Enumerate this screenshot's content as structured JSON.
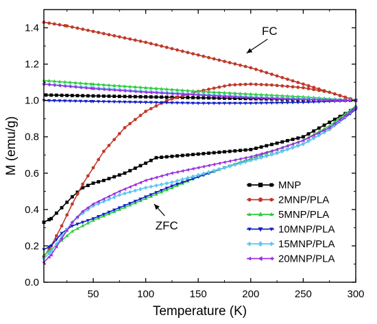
{
  "chart_data": {
    "type": "line",
    "xlabel": "Temperature (K)",
    "ylabel": "M (emu/g)",
    "xlim": [
      3,
      300
    ],
    "ylim": [
      0.0,
      1.5
    ],
    "x_ticks": [
      50,
      100,
      150,
      200,
      250,
      300
    ],
    "y_ticks": [
      0.0,
      0.2,
      0.4,
      0.6,
      0.8,
      1.0,
      1.2,
      1.4
    ],
    "x_tick_labels": [
      "50",
      "100",
      "150",
      "200",
      "250",
      "300"
    ],
    "y_tick_labels": [
      "0.0",
      "0.2",
      "0.4",
      "0.6",
      "0.8",
      "1.0",
      "1.2",
      "1.4"
    ],
    "grid": false,
    "legend_placement": "bottom-right",
    "annotations": [
      {
        "text": "FC",
        "x": 218,
        "y": 1.36,
        "arrow_to": [
          196,
          1.26
        ]
      },
      {
        "text": "ZFC",
        "x": 120,
        "y": 0.29,
        "arrow_to": [
          108,
          0.43
        ]
      }
    ],
    "series": [
      {
        "name": "MNP",
        "color": "#000000",
        "marker": "square",
        "branches": [
          {
            "x": [
              5,
              50,
              100,
              150,
              200,
              250,
              300
            ],
            "y": [
              1.03,
              1.025,
              1.02,
              1.015,
              1.01,
              1.005,
              1.0
            ]
          },
          {
            "x": [
              3,
              10,
              20,
              30,
              40,
              50,
              60,
              80,
              100,
              110,
              120,
              150,
              200,
              250,
              300
            ],
            "y": [
              0.33,
              0.35,
              0.41,
              0.47,
              0.52,
              0.545,
              0.56,
              0.6,
              0.655,
              0.685,
              0.69,
              0.705,
              0.73,
              0.8,
              0.96
            ]
          }
        ]
      },
      {
        "name": "2MNP/PLA",
        "color": "#c0392b",
        "marker": "circle",
        "branches": [
          {
            "x": [
              3,
              25,
              50,
              100,
              150,
              200,
              250,
              300
            ],
            "y": [
              1.43,
              1.41,
              1.38,
              1.32,
              1.25,
              1.18,
              1.09,
              1.0
            ]
          },
          {
            "x": [
              3,
              10,
              20,
              30,
              40,
              60,
              80,
              100,
              120,
              150,
              180,
              200,
              220,
              250,
              275,
              300
            ],
            "y": [
              0.14,
              0.2,
              0.31,
              0.43,
              0.54,
              0.72,
              0.85,
              0.94,
              1.0,
              1.05,
              1.085,
              1.09,
              1.085,
              1.07,
              1.045,
              1.0
            ]
          }
        ]
      },
      {
        "name": "5MNP/PLA",
        "color": "#2ecc40",
        "marker": "triangle-up",
        "branches": [
          {
            "x": [
              3,
              50,
              100,
              150,
              200,
              250,
              300
            ],
            "y": [
              1.11,
              1.09,
              1.07,
              1.05,
              1.035,
              1.02,
              1.0
            ]
          },
          {
            "x": [
              3,
              10,
              20,
              30,
              40,
              50,
              75,
              100,
              125,
              150,
              175,
              200,
              225,
              250,
              275,
              300
            ],
            "y": [
              0.15,
              0.18,
              0.23,
              0.28,
              0.31,
              0.34,
              0.4,
              0.46,
              0.52,
              0.58,
              0.63,
              0.68,
              0.73,
              0.78,
              0.86,
              0.97
            ]
          }
        ]
      },
      {
        "name": "10MNP/PLA",
        "color": "#1020c8",
        "marker": "triangle-down",
        "branches": [
          {
            "x": [
              3,
              50,
              100,
              150,
              200,
              250,
              300
            ],
            "y": [
              1.0,
              0.995,
              0.99,
              0.985,
              0.985,
              0.99,
              1.0
            ]
          },
          {
            "x": [
              3,
              10,
              20,
              30,
              40,
              50,
              75,
              100,
              125,
              150,
              175,
              200,
              225,
              250,
              275,
              300
            ],
            "y": [
              0.18,
              0.2,
              0.27,
              0.31,
              0.33,
              0.35,
              0.41,
              0.47,
              0.53,
              0.58,
              0.63,
              0.67,
              0.71,
              0.76,
              0.84,
              0.95
            ]
          }
        ]
      },
      {
        "name": "15MNP/PLA",
        "color": "#5bc8ee",
        "marker": "diamond",
        "branches": [
          {
            "x": [
              3,
              50,
              100,
              150,
              200,
              250,
              300
            ],
            "y": [
              1.09,
              1.07,
              1.05,
              1.035,
              1.02,
              1.01,
              1.0
            ]
          },
          {
            "x": [
              3,
              10,
              20,
              30,
              40,
              50,
              75,
              100,
              125,
              150,
              175,
              200,
              225,
              250,
              275,
              300
            ],
            "y": [
              0.13,
              0.17,
              0.25,
              0.33,
              0.38,
              0.42,
              0.48,
              0.52,
              0.55,
              0.59,
              0.63,
              0.67,
              0.71,
              0.76,
              0.84,
              0.96
            ]
          }
        ]
      },
      {
        "name": "20MNP/PLA",
        "color": "#9b30e0",
        "marker": "triangle-left",
        "branches": [
          {
            "x": [
              3,
              50,
              100,
              150,
              200,
              250,
              300
            ],
            "y": [
              1.09,
              1.065,
              1.045,
              1.03,
              1.015,
              1.005,
              1.0
            ]
          },
          {
            "x": [
              3,
              10,
              20,
              30,
              40,
              50,
              75,
              100,
              125,
              150,
              175,
              200,
              225,
              250,
              275,
              300
            ],
            "y": [
              0.11,
              0.15,
              0.24,
              0.33,
              0.39,
              0.43,
              0.5,
              0.56,
              0.6,
              0.63,
              0.66,
              0.69,
              0.73,
              0.78,
              0.85,
              0.96
            ]
          }
        ]
      }
    ]
  }
}
